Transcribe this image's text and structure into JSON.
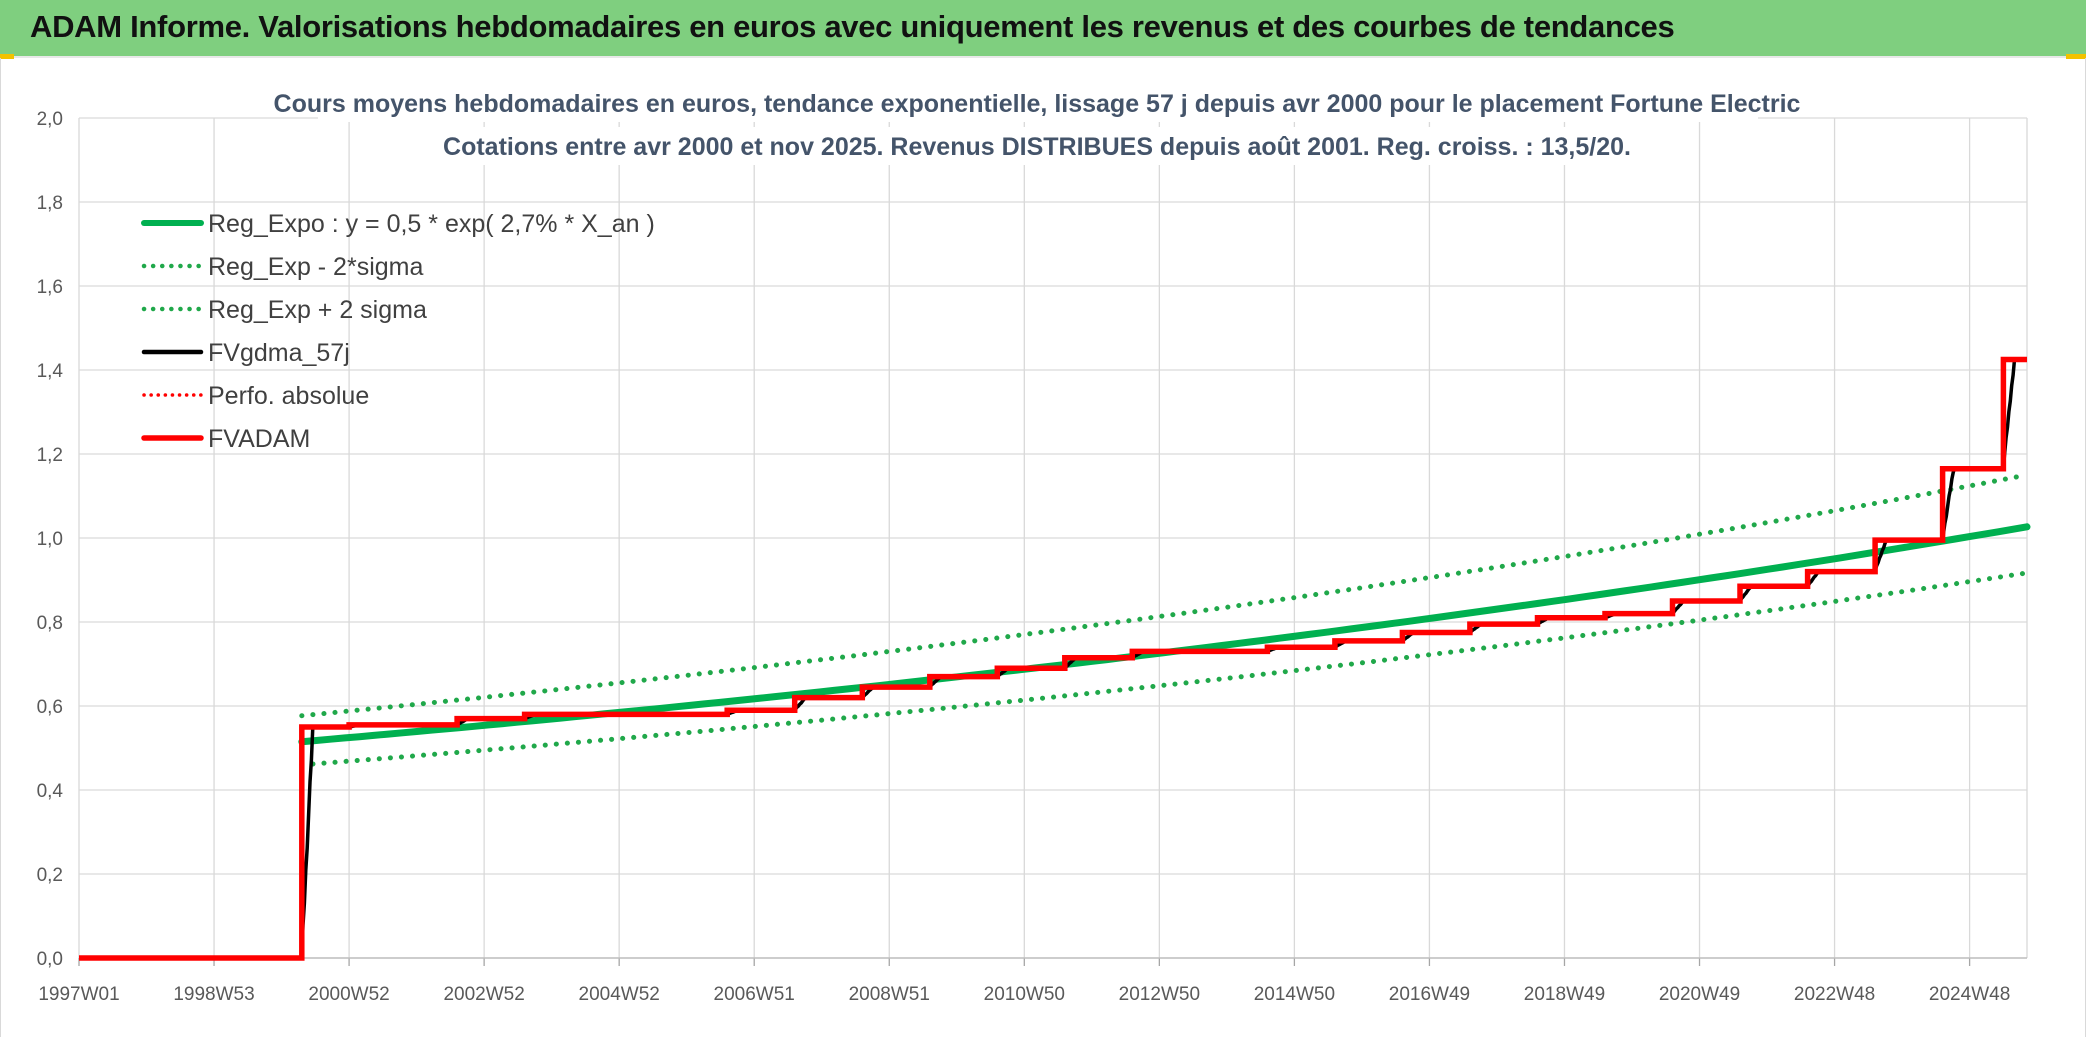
{
  "header": {
    "title": "ADAM Informe. Valorisations hebdomadaires en euros avec uniquement les revenus et des courbes de tendances"
  },
  "colors": {
    "banner": "#7fcf7f",
    "trend_green": "#00b050",
    "dotted_green": "#20a84a",
    "red": "#ff0000",
    "black": "#000000",
    "grid": "#d9d9d9"
  },
  "chart_data": {
    "type": "line",
    "title": "Cours moyens hebdomadaires en euros, tendance exponentielle, lissage 57 j depuis avr 2000 pour le placement Fortune Electric",
    "subtitle": "Cotations entre avr 2000 et nov 2025. Revenus DISTRIBUES depuis août 2001. Reg. croiss. : 13,5/20.",
    "x_tick_labels": [
      "1997W01",
      "1998W53",
      "2000W52",
      "2002W52",
      "2004W52",
      "2006W51",
      "2008W51",
      "2010W50",
      "2012W50",
      "2014W50",
      "2016W49",
      "2018W49",
      "2020W49",
      "2022W48",
      "2024W48"
    ],
    "x_ticks_year": [
      1997.0,
      1999.0,
      2001.0,
      2003.0,
      2005.0,
      2007.0,
      2009.0,
      2011.0,
      2013.0,
      2015.0,
      2017.0,
      2019.0,
      2021.0,
      2023.0,
      2025.0
    ],
    "xlim": [
      1997.0,
      2025.85
    ],
    "ylim": [
      0,
      2
    ],
    "y_ticks": [
      "0,0",
      "0,2",
      "0,4",
      "0,6",
      "0,8",
      "1,0",
      "1,2",
      "1,4",
      "1,6",
      "1,8",
      "2,0"
    ],
    "grid": true,
    "legend_position": "top-left",
    "legend": [
      {
        "label": "Reg_Expo : y = 0,5 * exp( 2,7% *  X_an )",
        "style": "solid-green"
      },
      {
        "label": "Reg_Exp - 2*sigma",
        "style": "dotted-green"
      },
      {
        "label": "Reg_Exp + 2 sigma",
        "style": "dotted-green"
      },
      {
        "label": "FVgdma_57j",
        "style": "solid-black"
      },
      {
        "label": "Perfo. absolue",
        "style": "dotted-red"
      },
      {
        "label": "FVADAM",
        "style": "solid-red"
      }
    ],
    "series": [
      {
        "name": "Reg_Expo : y = 0,5 * exp( 2,7% *  X_an )",
        "x": [
          2000.3,
          2025.85
        ],
        "a": 0.515,
        "rate": 0.027
      },
      {
        "name": "Reg_Exp - 2*sigma",
        "x": [
          2000.3,
          2025.85
        ],
        "a": 0.46,
        "rate": 0.027
      },
      {
        "name": "Reg_Exp + 2 sigma",
        "x": [
          2000.3,
          2025.85
        ],
        "a": 0.577,
        "rate": 0.027
      },
      {
        "name": "FVADAM",
        "step_x": [
          1997.0,
          2000.3,
          2001.0,
          2002.6,
          2003.6,
          2006.6,
          2007.6,
          2008.6,
          2009.6,
          2010.6,
          2011.6,
          2012.6,
          2014.6,
          2015.6,
          2016.6,
          2017.6,
          2018.6,
          2019.6,
          2020.6,
          2021.6,
          2022.6,
          2023.6,
          2024.6,
          2025.5
        ],
        "step_y": [
          0.0,
          0.55,
          0.555,
          0.57,
          0.58,
          0.59,
          0.62,
          0.645,
          0.67,
          0.69,
          0.715,
          0.73,
          0.74,
          0.755,
          0.775,
          0.795,
          0.81,
          0.82,
          0.85,
          0.885,
          0.92,
          0.995,
          1.165,
          1.425
        ],
        "x_end": 2025.85
      },
      {
        "name": "FVgdma_57j",
        "follows": "FVADAM",
        "smoothing_years": 0.16
      }
    ]
  }
}
